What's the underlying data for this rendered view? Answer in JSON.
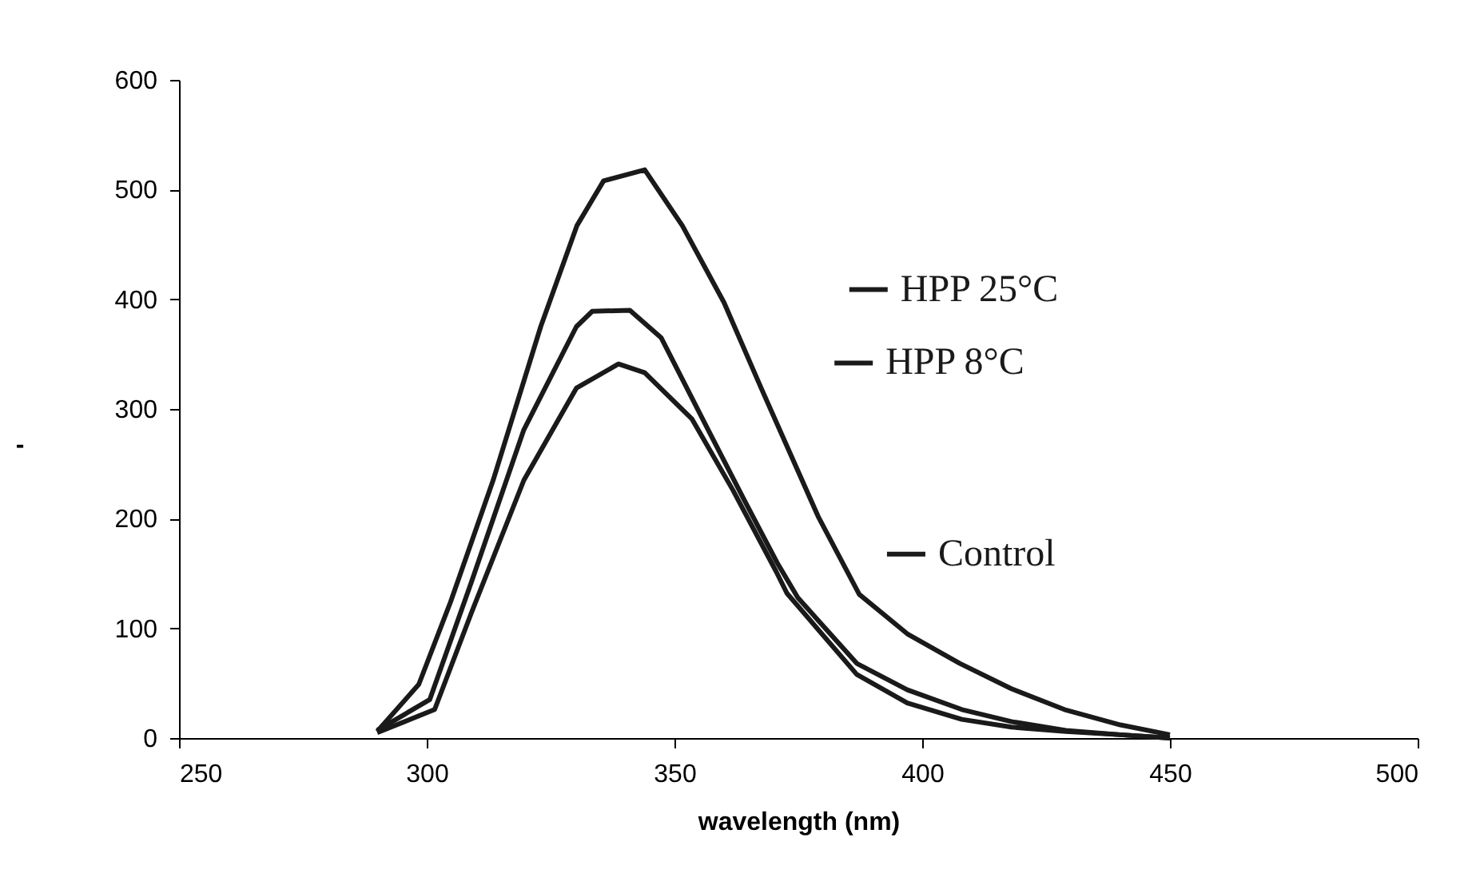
{
  "chart_data": {
    "type": "line",
    "xlabel": "wavelength (nm)",
    "ylabel": "-",
    "xlim": [
      250,
      500
    ],
    "xticks": [
      250,
      300,
      350,
      400,
      450,
      500
    ],
    "ylim": [
      0,
      600
    ],
    "yticks": [
      0,
      100,
      200,
      300,
      400,
      500,
      600
    ],
    "grid": false,
    "legend": "right",
    "marker": "none",
    "line_style": "solid",
    "series": [
      {
        "name": "HPP 25°C",
        "color": "#1a1a1a",
        "x": [
          290,
          298.4,
          304.8,
          313.4,
          323,
          330.3,
          335.7,
          344,
          351.6,
          360,
          367.5,
          379,
          387.3,
          397,
          407.6,
          418,
          428.7,
          440,
          450
        ],
        "values": [
          6,
          49,
          124,
          235,
          375,
          467,
          508,
          518,
          467,
          397,
          319,
          202,
          131,
          95,
          68,
          45,
          26,
          12,
          3
        ]
      },
      {
        "name": "HPP 8°C",
        "color": "#1a1a1a",
        "x": [
          290,
          300.6,
          309,
          319.6,
          330.2,
          333.4,
          341,
          347.3,
          356.8,
          364.2,
          370.7,
          374.9,
          386.8,
          397,
          408,
          418,
          429,
          440,
          450
        ],
        "values": [
          7,
          35,
          142,
          281,
          375,
          389,
          390,
          365,
          281,
          216,
          160,
          128,
          68,
          44,
          26,
          15,
          7,
          3,
          0
        ]
      },
      {
        "name": "Control",
        "color": "#1a1a1a",
        "x": [
          290,
          301.6,
          309,
          319.6,
          330.2,
          338.7,
          344,
          353.5,
          361.8,
          370.5,
          372.7,
          386.8,
          397,
          408,
          418,
          429,
          440,
          450
        ],
        "values": [
          5,
          26,
          114,
          235,
          319,
          341,
          333,
          291,
          226,
          152,
          132,
          58,
          32,
          17,
          10,
          6,
          3,
          0
        ]
      }
    ]
  }
}
